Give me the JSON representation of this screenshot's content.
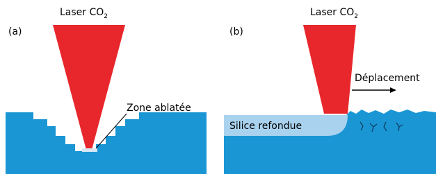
{
  "panels": [
    {
      "tag": "(a)",
      "laser": {
        "main": "Laser CO",
        "sub": "2"
      },
      "annotation": "Zone ablatée"
    },
    {
      "tag": "(b)",
      "laser": {
        "main": "Laser CO",
        "sub": "2"
      },
      "region": "Silice refondue",
      "motion": "Déplacement"
    }
  ]
}
